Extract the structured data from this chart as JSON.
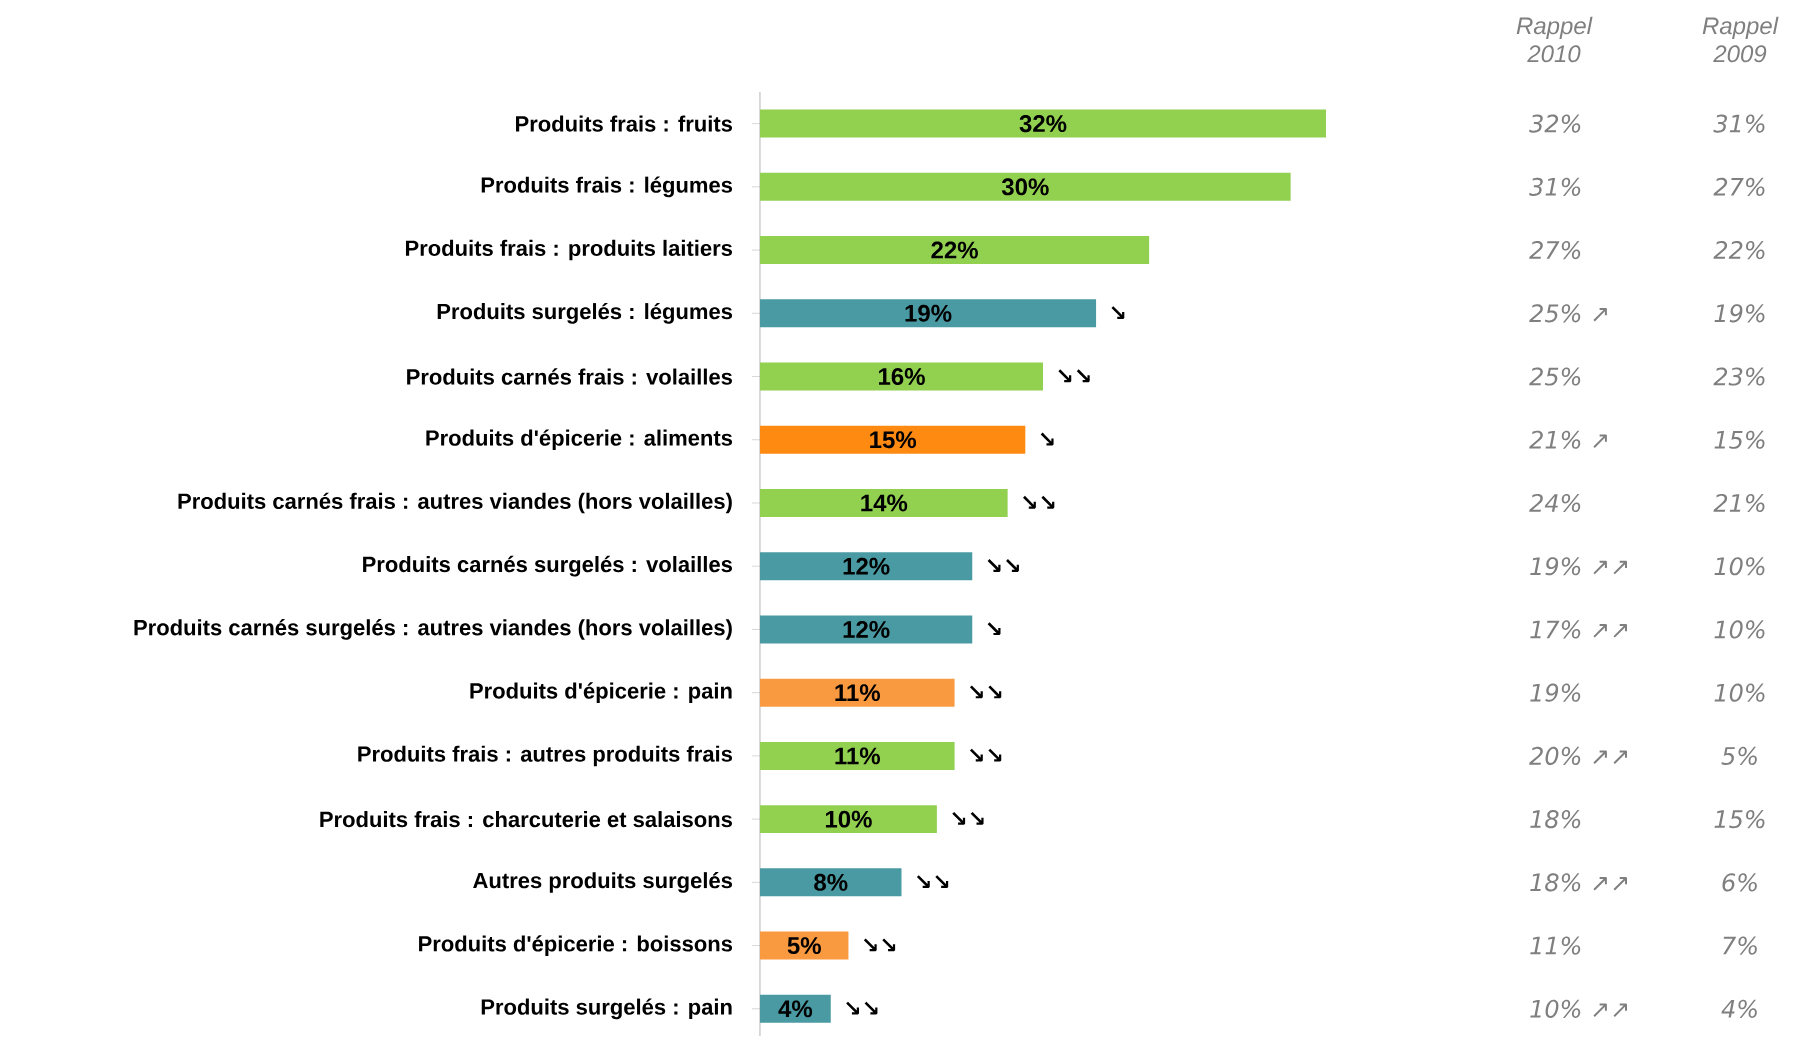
{
  "chart_data": {
    "type": "bar",
    "orientation": "horizontal",
    "tick_labels": "y",
    "categories": [
      "Produits frais : fruits",
      "Produits frais : légumes",
      "Produits frais : produits laitiers",
      "Produits surgelés : légumes",
      "Produits carnés frais :  volailles",
      "Produits d'épicerie : aliments",
      "Produits carnés frais : autres viandes (hors volailles)",
      "Produits carnés surgelés : volailles",
      "Produits carnés surgelés : autres viandes (hors volailles)",
      "Produits d'épicerie : pain",
      "Produits frais :  autres produits frais",
      "Produits frais :  charcuterie et salaisons",
      "Autres produits surgelés",
      "Produits d'épicerie : boissons",
      "Produits surgelés : pain"
    ],
    "values": [
      32,
      30,
      22,
      19,
      16,
      15,
      14,
      12,
      12,
      11,
      11,
      10,
      8,
      5,
      4
    ],
    "value_labels": [
      "32%",
      "30%",
      "22%",
      "19%",
      "16%",
      "15%",
      "14%",
      "12%",
      "12%",
      "11%",
      "11%",
      "10%",
      "8%",
      "5%",
      "4%"
    ],
    "colors": [
      "#92d050",
      "#92d050",
      "#92d050",
      "#4a9aa3",
      "#92d050",
      "#ff8a12",
      "#92d050",
      "#4a9aa3",
      "#4a9aa3",
      "#f99a40",
      "#92d050",
      "#92d050",
      "#4a9aa3",
      "#f99a40",
      "#4a9aa3"
    ],
    "annotations": [
      {
        "text": "↘",
        "x": 19,
        "y": "Produits surgelés : légumes"
      },
      {
        "text": "↘↘",
        "x": 16,
        "y": "Produits carnés frais :  volailles"
      },
      {
        "text": "↘",
        "x": 15,
        "y": "Produits d'épicerie : aliments"
      },
      {
        "text": "↘↘",
        "x": 14,
        "y": "Produits carnés frais : autres viandes (hors volailles)"
      },
      {
        "text": "↘↘",
        "x": 12,
        "y": "Produits carnés surgelés : volailles"
      },
      {
        "text": "↘",
        "x": 12,
        "y": "Produits carnés surgelés : autres viandes (hors volailles)"
      },
      {
        "text": "↘↘",
        "x": 11,
        "y": "Produits d'épicerie : pain"
      },
      {
        "text": "↘↘",
        "x": 11,
        "y": "Produits frais :  autres produits frais"
      },
      {
        "text": "↘↘",
        "x": 10,
        "y": "Produits frais :  charcuterie et salaisons"
      },
      {
        "text": "↘↘",
        "x": 8,
        "y": "Autres produits surgelés"
      },
      {
        "text": "↘↘",
        "x": 5,
        "y": "Produits d'épicerie : boissons"
      },
      {
        "text": "↘↘",
        "x": 4,
        "y": "Produits surgelés : pain"
      },
      "Rappel 2010",
      "Rappel 2009",
      "32%",
      "31%",
      "31%",
      "27%",
      "27%",
      "22%",
      "25% ↗",
      "19%",
      "25%",
      "23%",
      "21% ↗",
      "15%",
      "24%",
      "21%",
      "19% ↗↗",
      "10%",
      "17% ↗↗",
      "10%",
      "19%",
      "10%",
      "20% ↗↗",
      "5%",
      "18%",
      "15%",
      "18% ↗↗",
      "6%",
      "11%",
      "7%",
      "10% ↗↗",
      "4%"
    ]
  }
}
